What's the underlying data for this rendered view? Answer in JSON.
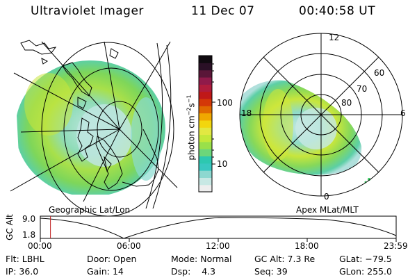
{
  "header": {
    "title": "Ultraviolet Imager",
    "date": "11 Dec 07",
    "time": "00:40:58 UT"
  },
  "left_map": {
    "caption": "Geographic Lat/Lon"
  },
  "right_map": {
    "caption": "Apex MLat/MLT",
    "mlt_labels": [
      "12",
      "18",
      "6",
      "0"
    ],
    "lat_labels": [
      "60",
      "70",
      "80"
    ]
  },
  "colorbar": {
    "unit_label": "photon cm",
    "unit_sup1": "−2",
    "unit_mid": "s",
    "unit_sup2": "−1",
    "tick_labels": [
      "100",
      "10"
    ],
    "colors": [
      "#eeeeee",
      "#c8e8e4",
      "#8dd8d0",
      "#39c8c0",
      "#2dc8b0",
      "#6cd67a",
      "#9ae04a",
      "#c4e83a",
      "#e2e842",
      "#f2d60e",
      "#f0a800",
      "#e06a00",
      "#d43808",
      "#c01818",
      "#b01c3c",
      "#901a4a",
      "#5a1638",
      "#2a1026",
      "#100a10"
    ]
  },
  "timeline": {
    "axis_label": "GC Alt",
    "y_ticks": [
      "9.0",
      "1.8"
    ],
    "x_ticks": [
      "00:00",
      "06:00",
      "12:00",
      "18:00",
      "23:59"
    ],
    "current_time_fraction": 0.0285
  },
  "info": {
    "row1": [
      {
        "label": "Flt:",
        "value": "LBHL"
      },
      {
        "label": "Door:",
        "value": "Open"
      },
      {
        "label": "Mode:",
        "value": "Normal"
      },
      {
        "label": "GC Alt:",
        "value": "7.3 Re"
      },
      {
        "label": "GLat:",
        "value": "−79.5"
      }
    ],
    "row2": [
      {
        "label": "IP:",
        "value": "36.0"
      },
      {
        "label": "Gain:",
        "value": "14"
      },
      {
        "label": "Dsp:",
        "value": "4.3"
      },
      {
        "label": "Seq:",
        "value": "39"
      },
      {
        "label": "GLon:",
        "value": "255.0"
      }
    ]
  }
}
